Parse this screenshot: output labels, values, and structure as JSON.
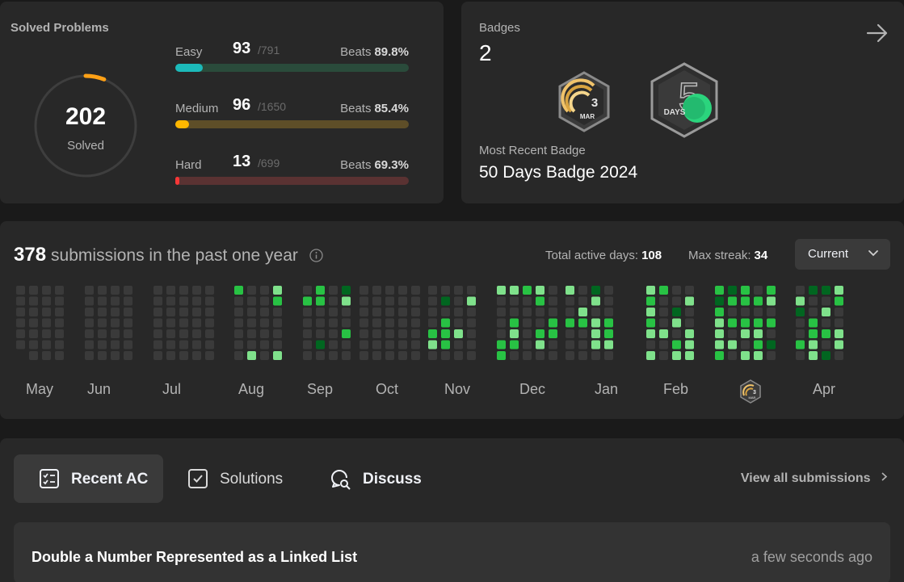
{
  "solved": {
    "title": "Solved Problems",
    "total": "202",
    "total_label": "Solved",
    "progress_fraction": 0.06,
    "difficulties": [
      {
        "name": "Easy",
        "solved": "93",
        "total": "/791",
        "beats_label": "Beats",
        "beats": "89.8%",
        "fraction": 0.118,
        "color": "#1cbaba",
        "track": "#2a4b3b"
      },
      {
        "name": "Medium",
        "solved": "96",
        "total": "/1650",
        "beats_label": "Beats",
        "beats": "85.4%",
        "fraction": 0.058,
        "color": "#ffb700",
        "track": "#5e4e28"
      },
      {
        "name": "Hard",
        "solved": "13",
        "total": "/699",
        "beats_label": "Beats",
        "beats": "69.3%",
        "fraction": 0.019,
        "color": "#f63737",
        "track": "#5a3232"
      }
    ]
  },
  "badges": {
    "title": "Badges",
    "count": "2",
    "items": [
      {
        "name": "mar-badge-icon",
        "day": "3",
        "month": "MAR"
      },
      {
        "name": "fifty-days-badge-icon",
        "label": "DAYS"
      }
    ],
    "recent_label": "Most Recent Badge",
    "recent_name": "50 Days Badge 2024"
  },
  "calendar": {
    "count": "378",
    "heading_rest": "submissions in the past one year",
    "active_days_label": "Total active days:",
    "active_days": "108",
    "max_streak_label": "Max streak:",
    "max_streak": "34",
    "period": "Current",
    "months": [
      "May",
      "Jun",
      "Jul",
      "Aug",
      "Sep",
      "Oct",
      "Nov",
      "Dec",
      "Jan",
      "Feb",
      "Mar",
      "Apr"
    ],
    "mar_badge": {
      "day": "3",
      "month": "MAR"
    },
    "colors": {
      "empty": "#3a3a3a",
      "l1": "#016620",
      "l2": "#28c244",
      "l3": "#7fe18b"
    }
  },
  "recent": {
    "tabs": [
      {
        "label": "Recent AC",
        "icon": "checklist-icon"
      },
      {
        "label": "Solutions",
        "icon": "checkbox-icon"
      },
      {
        "label": "Discuss",
        "icon": "discuss-icon"
      }
    ],
    "view_all": "View all submissions",
    "items": [
      {
        "title": "Double a Number Represented as a Linked List",
        "time": "a few seconds ago"
      }
    ]
  }
}
